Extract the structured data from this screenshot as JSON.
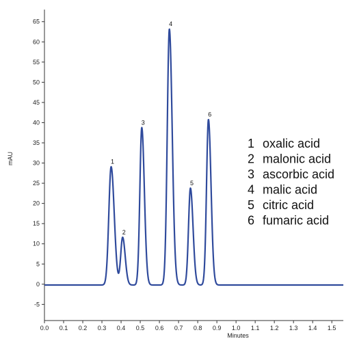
{
  "chart_data": {
    "type": "line",
    "title": "",
    "xlabel": "Minutes",
    "ylabel": "mAU",
    "xlim": [
      0.0,
      1.56
    ],
    "ylim": [
      -9,
      68
    ],
    "x_ticks": [
      0.0,
      0.1,
      0.2,
      0.3,
      0.4,
      0.5,
      0.6,
      0.7,
      0.8,
      0.9,
      1.0,
      1.1,
      1.2,
      1.3,
      1.4,
      1.5
    ],
    "x_tick_labels": [
      "0.0",
      "0.1",
      "0.2",
      "0.3",
      "0.4",
      "0.5",
      "0.6",
      "0.7",
      "0.8",
      "0.9",
      "1.0",
      "1.1",
      "1.2",
      "1.3",
      "1.4",
      "1.5"
    ],
    "y_ticks": [
      -5,
      0,
      5,
      10,
      15,
      20,
      25,
      30,
      35,
      40,
      45,
      50,
      55,
      60,
      65
    ],
    "y_tick_labels": [
      "-5",
      "0",
      "5",
      "10",
      "15",
      "20",
      "25",
      "30",
      "35",
      "40",
      "45",
      "50",
      "55",
      "60",
      "65"
    ],
    "grid": false,
    "line_color": "#2f4a9c",
    "series": [
      {
        "peaks": [
          {
            "label": "1",
            "x": 0.348,
            "y": 29.3,
            "width": 0.012
          },
          {
            "label": "2",
            "x": 0.408,
            "y": 11.8,
            "width": 0.01
          },
          {
            "label": "3",
            "x": 0.508,
            "y": 39.0,
            "width": 0.01
          },
          {
            "label": "4",
            "x": 0.652,
            "y": 63.4,
            "width": 0.011
          },
          {
            "label": "5",
            "x": 0.762,
            "y": 24.0,
            "width": 0.01
          },
          {
            "label": "6",
            "x": 0.856,
            "y": 41.0,
            "width": 0.01
          }
        ],
        "baseline": -0.2
      }
    ],
    "legend": {
      "placement": "right",
      "entries": [
        {
          "num": "1",
          "name": "oxalic acid"
        },
        {
          "num": "2",
          "name": "malonic acid"
        },
        {
          "num": "3",
          "name": "ascorbic acid"
        },
        {
          "num": "4",
          "name": "malic acid"
        },
        {
          "num": "5",
          "name": "citric acid"
        },
        {
          "num": "6",
          "name": "fumaric acid"
        }
      ]
    }
  }
}
